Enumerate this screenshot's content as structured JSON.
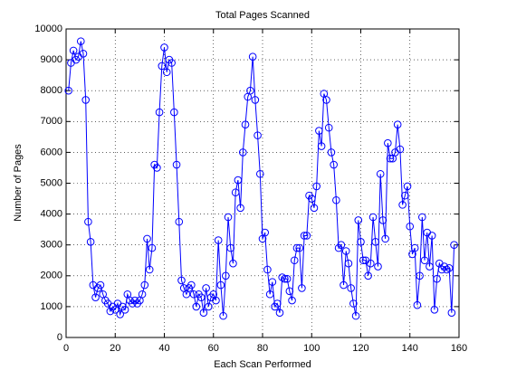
{
  "chart_data": {
    "type": "line",
    "title": "Total Pages Scanned",
    "xlabel": "Each Scan Performed",
    "ylabel": "Number of Pages",
    "x": [
      1,
      2,
      3,
      4,
      5,
      6,
      7,
      8,
      9,
      10,
      11,
      12,
      13,
      14,
      15,
      16,
      17,
      18,
      19,
      20,
      21,
      22,
      23,
      24,
      25,
      26,
      27,
      28,
      29,
      30,
      31,
      32,
      33,
      34,
      35,
      36,
      37,
      38,
      39,
      40,
      41,
      42,
      43,
      44,
      45,
      46,
      47,
      48,
      49,
      50,
      51,
      52,
      53,
      54,
      55,
      56,
      57,
      58,
      59,
      60,
      61,
      62,
      63,
      64,
      65,
      66,
      67,
      68,
      69,
      70,
      71,
      72,
      73,
      74,
      75,
      76,
      77,
      78,
      79,
      80,
      81,
      82,
      83,
      84,
      85,
      86,
      87,
      88,
      89,
      90,
      91,
      92,
      93,
      94,
      95,
      96,
      97,
      98,
      99,
      100,
      101,
      102,
      103,
      104,
      105,
      106,
      107,
      108,
      109,
      110,
      111,
      112,
      113,
      114,
      115,
      116,
      117,
      118,
      119,
      120,
      121,
      122,
      123,
      124,
      125,
      126,
      127,
      128,
      129,
      130,
      131,
      132,
      133,
      134,
      135,
      136,
      137,
      138,
      139,
      140,
      141,
      142,
      143,
      144,
      145,
      146,
      147,
      148,
      149,
      150,
      151,
      152,
      153,
      154,
      155,
      156,
      157,
      158
    ],
    "series": [
      {
        "name": "Pages",
        "color": "#0000ff",
        "values": [
          8000,
          8900,
          9300,
          9000,
          9100,
          9600,
          9200,
          7700,
          3750,
          3100,
          1700,
          1300,
          1600,
          1700,
          1400,
          1200,
          1100,
          850,
          1000,
          900,
          1100,
          750,
          1000,
          900,
          1400,
          1200,
          1100,
          1200,
          1100,
          1200,
          1400,
          1700,
          3200,
          2200,
          2900,
          5600,
          5500,
          7300,
          8800,
          9400,
          8600,
          9000,
          8900,
          7300,
          5600,
          3750,
          1850,
          1600,
          1400,
          1600,
          1700,
          1400,
          1000,
          1400,
          1300,
          800,
          1600,
          1000,
          1300,
          1400,
          1200,
          3150,
          1700,
          700,
          2000,
          3900,
          2900,
          2400,
          4700,
          5100,
          4200,
          6000,
          6900,
          7800,
          8000,
          9100,
          7700,
          6550,
          5300,
          3200,
          3400,
          2200,
          1400,
          1800,
          1000,
          1100,
          800,
          1950,
          1900,
          1900,
          1500,
          1200,
          2500,
          2900,
          2900,
          1600,
          3300,
          3300,
          4600,
          4500,
          4200,
          4900,
          6700,
          6200,
          7900,
          7700,
          6800,
          6000,
          5600,
          4450,
          2900,
          3000,
          1700,
          2800,
          2400,
          1600,
          1100,
          700,
          3800,
          3100,
          2500,
          2500,
          2000,
          2400,
          3900,
          3100,
          2300,
          5300,
          3800,
          3200,
          6300,
          5800,
          5800,
          6000,
          6900,
          6100,
          4300,
          4600,
          4900,
          3600,
          2700,
          2900,
          1050,
          2000,
          3900,
          2500,
          3400,
          2300,
          3300,
          900,
          1900,
          2400,
          2200,
          2300,
          2200,
          2250,
          800,
          3000
        ]
      }
    ],
    "xlim": [
      0,
      160
    ],
    "xticks": [
      0,
      20,
      40,
      60,
      80,
      100,
      120,
      140,
      160
    ],
    "ylim": [
      0,
      10000
    ],
    "yticks": [
      0,
      1000,
      2000,
      3000,
      4000,
      5000,
      6000,
      7000,
      8000,
      9000,
      10000
    ],
    "grid": true,
    "marker": "circle"
  }
}
